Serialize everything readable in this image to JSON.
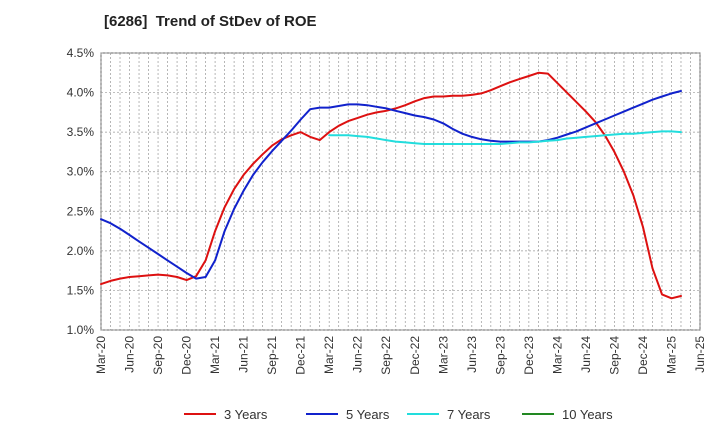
{
  "chart_data": {
    "type": "line",
    "title": "[6286]  Trend of StDev of ROE",
    "xlabel": "",
    "ylabel": "",
    "ylim": [
      1.0,
      4.5
    ],
    "y_ticks": [
      "1.0%",
      "1.5%",
      "2.0%",
      "2.5%",
      "3.0%",
      "3.5%",
      "4.0%",
      "4.5%"
    ],
    "x_ticks": [
      "Mar-20",
      "Jun-20",
      "Sep-20",
      "Dec-20",
      "Mar-21",
      "Jun-21",
      "Sep-21",
      "Dec-21",
      "Mar-22",
      "Jun-22",
      "Sep-22",
      "Dec-22",
      "Mar-23",
      "Jun-23",
      "Sep-23",
      "Dec-23",
      "Mar-24",
      "Jun-24",
      "Sep-24",
      "Dec-24",
      "Mar-25",
      "Jun-25"
    ],
    "grid": true,
    "legend_position": "bottom",
    "series": [
      {
        "name": "3 Years",
        "color": "#dd1111",
        "values": [
          [
            "Mar-20",
            1.58
          ],
          [
            "Apr-20",
            1.62
          ],
          [
            "May-20",
            1.65
          ],
          [
            "Jun-20",
            1.67
          ],
          [
            "Jul-20",
            1.68
          ],
          [
            "Aug-20",
            1.69
          ],
          [
            "Sep-20",
            1.7
          ],
          [
            "Oct-20",
            1.69
          ],
          [
            "Nov-20",
            1.67
          ],
          [
            "Dec-20",
            1.63
          ],
          [
            "Jan-21",
            1.68
          ],
          [
            "Feb-21",
            1.88
          ],
          [
            "Mar-21",
            2.25
          ],
          [
            "Apr-21",
            2.55
          ],
          [
            "May-21",
            2.78
          ],
          [
            "Jun-21",
            2.96
          ],
          [
            "Jul-21",
            3.1
          ],
          [
            "Aug-21",
            3.22
          ],
          [
            "Sep-21",
            3.33
          ],
          [
            "Oct-21",
            3.41
          ],
          [
            "Nov-21",
            3.46
          ],
          [
            "Dec-21",
            3.5
          ],
          [
            "Jan-22",
            3.44
          ],
          [
            "Feb-22",
            3.4
          ],
          [
            "Mar-22",
            3.5
          ],
          [
            "Apr-22",
            3.58
          ],
          [
            "May-22",
            3.64
          ],
          [
            "Jun-22",
            3.68
          ],
          [
            "Jul-22",
            3.72
          ],
          [
            "Aug-22",
            3.75
          ],
          [
            "Sep-22",
            3.77
          ],
          [
            "Oct-22",
            3.8
          ],
          [
            "Nov-22",
            3.84
          ],
          [
            "Dec-22",
            3.89
          ],
          [
            "Jan-23",
            3.93
          ],
          [
            "Feb-23",
            3.95
          ],
          [
            "Mar-23",
            3.95
          ],
          [
            "Apr-23",
            3.96
          ],
          [
            "May-23",
            3.96
          ],
          [
            "Jun-23",
            3.97
          ],
          [
            "Jul-23",
            3.99
          ],
          [
            "Aug-23",
            4.03
          ],
          [
            "Sep-23",
            4.08
          ],
          [
            "Oct-23",
            4.13
          ],
          [
            "Nov-23",
            4.17
          ],
          [
            "Dec-23",
            4.21
          ],
          [
            "Jan-24",
            4.25
          ],
          [
            "Feb-24",
            4.24
          ],
          [
            "Mar-24",
            4.12
          ],
          [
            "Apr-24",
            4.0
          ],
          [
            "May-24",
            3.88
          ],
          [
            "Jun-24",
            3.76
          ],
          [
            "Jul-24",
            3.63
          ],
          [
            "Aug-24",
            3.46
          ],
          [
            "Sep-24",
            3.25
          ],
          [
            "Oct-24",
            3.0
          ],
          [
            "Nov-24",
            2.7
          ],
          [
            "Dec-24",
            2.3
          ],
          [
            "Jan-25",
            1.78
          ],
          [
            "Feb-25",
            1.45
          ],
          [
            "Mar-25",
            1.4
          ],
          [
            "Apr-25",
            1.43
          ]
        ]
      },
      {
        "name": "5 Years",
        "color": "#1122cc",
        "values": [
          [
            "Mar-20",
            2.4
          ],
          [
            "Apr-20",
            2.35
          ],
          [
            "May-20",
            2.28
          ],
          [
            "Jun-20",
            2.2
          ],
          [
            "Jul-20",
            2.12
          ],
          [
            "Aug-20",
            2.04
          ],
          [
            "Sep-20",
            1.96
          ],
          [
            "Oct-20",
            1.88
          ],
          [
            "Nov-20",
            1.8
          ],
          [
            "Dec-20",
            1.72
          ],
          [
            "Jan-21",
            1.65
          ],
          [
            "Feb-21",
            1.67
          ],
          [
            "Mar-21",
            1.88
          ],
          [
            "Apr-21",
            2.25
          ],
          [
            "May-21",
            2.53
          ],
          [
            "Jun-21",
            2.76
          ],
          [
            "Jul-21",
            2.96
          ],
          [
            "Aug-21",
            3.12
          ],
          [
            "Sep-21",
            3.26
          ],
          [
            "Oct-21",
            3.39
          ],
          [
            "Nov-21",
            3.52
          ],
          [
            "Dec-21",
            3.66
          ],
          [
            "Jan-22",
            3.79
          ],
          [
            "Feb-22",
            3.81
          ],
          [
            "Mar-22",
            3.81
          ],
          [
            "Apr-22",
            3.83
          ],
          [
            "May-22",
            3.85
          ],
          [
            "Jun-22",
            3.85
          ],
          [
            "Jul-22",
            3.84
          ],
          [
            "Aug-22",
            3.82
          ],
          [
            "Sep-22",
            3.8
          ],
          [
            "Oct-22",
            3.77
          ],
          [
            "Nov-22",
            3.74
          ],
          [
            "Dec-22",
            3.71
          ],
          [
            "Jan-23",
            3.69
          ],
          [
            "Feb-23",
            3.66
          ],
          [
            "Mar-23",
            3.61
          ],
          [
            "Apr-23",
            3.54
          ],
          [
            "May-23",
            3.48
          ],
          [
            "Jun-23",
            3.44
          ],
          [
            "Jul-23",
            3.41
          ],
          [
            "Aug-23",
            3.39
          ],
          [
            "Sep-23",
            3.38
          ],
          [
            "Oct-23",
            3.38
          ],
          [
            "Nov-23",
            3.38
          ],
          [
            "Dec-23",
            3.38
          ],
          [
            "Jan-24",
            3.38
          ],
          [
            "Feb-24",
            3.4
          ],
          [
            "Mar-24",
            3.43
          ],
          [
            "Apr-24",
            3.47
          ],
          [
            "May-24",
            3.51
          ],
          [
            "Jun-24",
            3.56
          ],
          [
            "Jul-24",
            3.61
          ],
          [
            "Aug-24",
            3.66
          ],
          [
            "Sep-24",
            3.71
          ],
          [
            "Oct-24",
            3.76
          ],
          [
            "Nov-24",
            3.81
          ],
          [
            "Dec-24",
            3.86
          ],
          [
            "Jan-25",
            3.91
          ],
          [
            "Feb-25",
            3.95
          ],
          [
            "Mar-25",
            3.99
          ],
          [
            "Apr-25",
            4.02
          ]
        ]
      },
      {
        "name": "7 Years",
        "color": "#22dddd",
        "values": [
          [
            "Mar-22",
            3.46
          ],
          [
            "Apr-22",
            3.46
          ],
          [
            "May-22",
            3.46
          ],
          [
            "Jun-22",
            3.45
          ],
          [
            "Jul-22",
            3.44
          ],
          [
            "Aug-22",
            3.42
          ],
          [
            "Sep-22",
            3.4
          ],
          [
            "Oct-22",
            3.38
          ],
          [
            "Nov-22",
            3.37
          ],
          [
            "Dec-22",
            3.36
          ],
          [
            "Jan-23",
            3.35
          ],
          [
            "Feb-23",
            3.35
          ],
          [
            "Mar-23",
            3.35
          ],
          [
            "Apr-23",
            3.35
          ],
          [
            "May-23",
            3.35
          ],
          [
            "Jun-23",
            3.35
          ],
          [
            "Jul-23",
            3.35
          ],
          [
            "Aug-23",
            3.35
          ],
          [
            "Sep-23",
            3.35
          ],
          [
            "Oct-23",
            3.36
          ],
          [
            "Nov-23",
            3.37
          ],
          [
            "Dec-23",
            3.37
          ],
          [
            "Jan-24",
            3.38
          ],
          [
            "Feb-24",
            3.39
          ],
          [
            "Mar-24",
            3.4
          ],
          [
            "Apr-24",
            3.42
          ],
          [
            "May-24",
            3.43
          ],
          [
            "Jun-24",
            3.44
          ],
          [
            "Jul-24",
            3.45
          ],
          [
            "Aug-24",
            3.46
          ],
          [
            "Sep-24",
            3.47
          ],
          [
            "Oct-24",
            3.48
          ],
          [
            "Nov-24",
            3.48
          ],
          [
            "Dec-24",
            3.49
          ],
          [
            "Jan-25",
            3.5
          ],
          [
            "Feb-25",
            3.51
          ],
          [
            "Mar-25",
            3.51
          ],
          [
            "Apr-25",
            3.5
          ]
        ]
      },
      {
        "name": "10 Years",
        "color": "#228822",
        "values": []
      }
    ]
  }
}
